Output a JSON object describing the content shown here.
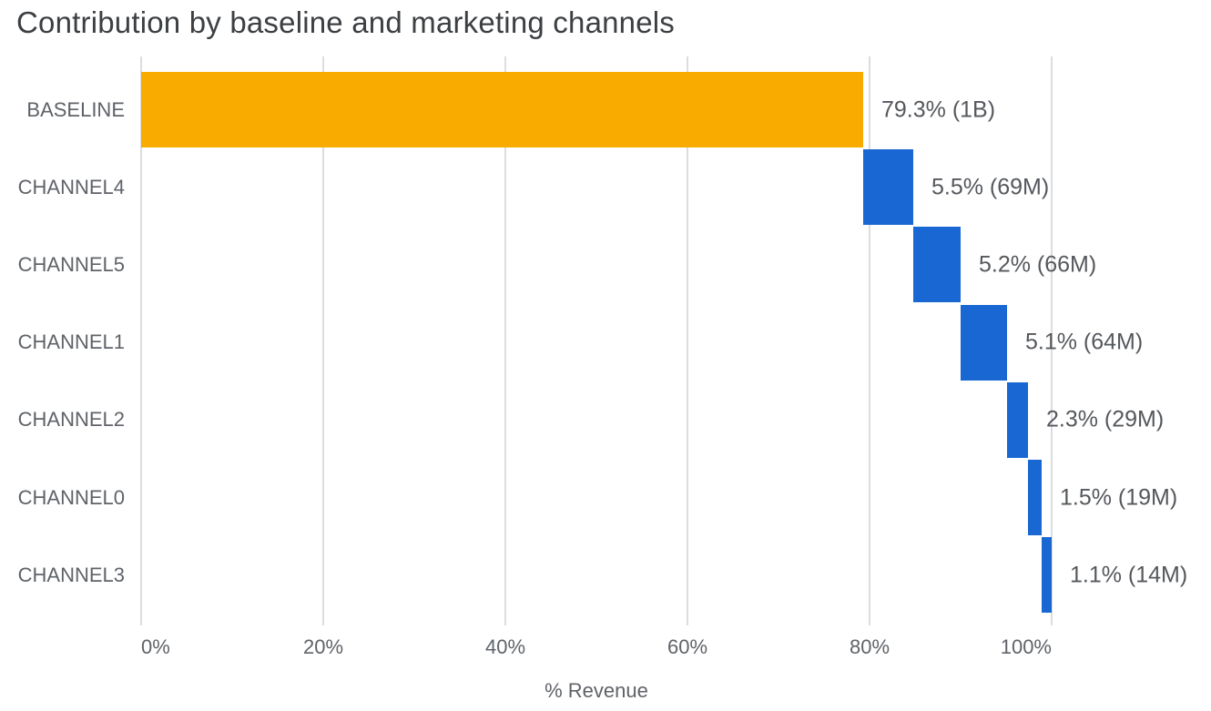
{
  "title": "Contribution by baseline and marketing channels",
  "chart_data": {
    "type": "bar",
    "variant": "horizontal-waterfall",
    "title": "Contribution by baseline and marketing channels",
    "xlabel": "% Revenue",
    "xlim": [
      0,
      100
    ],
    "grid": "vertical",
    "legend": "none",
    "x_ticks": [
      {
        "value": 0,
        "label": "0%"
      },
      {
        "value": 20,
        "label": "20%"
      },
      {
        "value": 40,
        "label": "40%"
      },
      {
        "value": 60,
        "label": "60%"
      },
      {
        "value": 80,
        "label": "80%"
      },
      {
        "value": 100,
        "label": "100%"
      }
    ],
    "bars": [
      {
        "category": "BASELINE",
        "start_pct": 0.0,
        "value_pct": 79.3,
        "value_abs": "1B",
        "annotation": "79.3% (1B)",
        "color_key": "baseline"
      },
      {
        "category": "CHANNEL4",
        "start_pct": 79.3,
        "value_pct": 5.5,
        "value_abs": "69M",
        "annotation": "5.5% (69M)",
        "color_key": "channel"
      },
      {
        "category": "CHANNEL5",
        "start_pct": 84.8,
        "value_pct": 5.2,
        "value_abs": "66M",
        "annotation": "5.2% (66M)",
        "color_key": "channel"
      },
      {
        "category": "CHANNEL1",
        "start_pct": 90.0,
        "value_pct": 5.1,
        "value_abs": "64M",
        "annotation": "5.1% (64M)",
        "color_key": "channel"
      },
      {
        "category": "CHANNEL2",
        "start_pct": 95.1,
        "value_pct": 2.3,
        "value_abs": "29M",
        "annotation": "2.3% (29M)",
        "color_key": "channel"
      },
      {
        "category": "CHANNEL0",
        "start_pct": 97.4,
        "value_pct": 1.5,
        "value_abs": "19M",
        "annotation": "1.5% (19M)",
        "color_key": "channel"
      },
      {
        "category": "CHANNEL3",
        "start_pct": 98.9,
        "value_pct": 1.1,
        "value_abs": "14M",
        "annotation": "1.1% (14M)",
        "color_key": "channel"
      }
    ],
    "colors": {
      "baseline": "#F9AB00",
      "channel": "#1967D2",
      "gridline": "#DBDDE0",
      "title_text": "#3C4043",
      "axis_text": "#5F6368",
      "annotation_text": "#55585C"
    }
  }
}
